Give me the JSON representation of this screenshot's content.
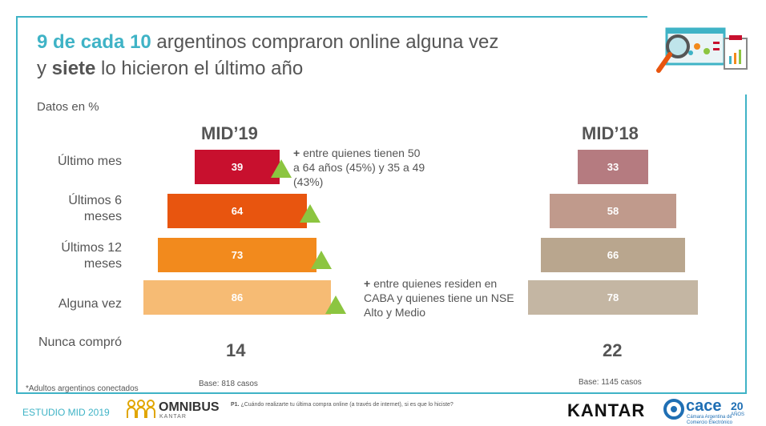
{
  "title": {
    "line1_accent": "9 de cada 10",
    "line1_rest": " argentinos compraron online alguna vez",
    "line2_pre": "y ",
    "line2_bold": "siete",
    "line2_rest": " lo hicieron el último año"
  },
  "subtitle": "Datos en %",
  "footnote": "*Adultos argentinos conectados",
  "row_labels": [
    "Último mes",
    "Últimos 6 meses",
    "Últimos 12 meses",
    "Alguna vez",
    "Nunca compró"
  ],
  "annotations": {
    "a1_plus": "+",
    "a1_text": " entre quienes tienen 50 a 64 años (45%) y 35 a 49 (43%)",
    "a2_plus": "+",
    "a2_text": " entre quienes residen en CABA y quienes tiene un NSE Alto y Medio"
  },
  "footer": {
    "left": "ESTUDIO MID 2019",
    "omnibus": "OMNIBUS",
    "omnibus_sub": "KANTAR",
    "question_bold": "P1.",
    "question": " ¿Cuándo realizarte tu última compra online (a través de internet), si es que lo hiciste?",
    "kantar": "KANTAR",
    "cace": "cace",
    "cace_sub": "Cámara Argentina de Comercio Electrónico",
    "anos": "20",
    "anos_sub": "AÑOS"
  },
  "colors": {
    "accent": "#3fb3c6",
    "mid19": [
      "#c8102e",
      "#e8550f",
      "#f28a1d",
      "#f6bb74"
    ],
    "mid18": [
      "#b57b80",
      "#c09a8c",
      "#b9a68e",
      "#c4b6a3"
    ],
    "up_arrow": "#8cc540"
  },
  "chart_data": [
    {
      "type": "bar",
      "title": "MID’19",
      "categories": [
        "Último mes",
        "Últimos 6 meses",
        "Últimos 12 meses",
        "Alguna vez"
      ],
      "values": [
        39,
        64,
        73,
        86
      ],
      "nunca_compro": "14",
      "base": "Base: 818 casos"
    },
    {
      "type": "bar",
      "title": "MID’18",
      "categories": [
        "Último mes",
        "Últimos 6 meses",
        "Últimos 12 meses",
        "Alguna vez"
      ],
      "values": [
        33,
        58,
        66,
        78
      ],
      "nunca_compro": "22",
      "base": "Base: 1145 casos"
    }
  ]
}
